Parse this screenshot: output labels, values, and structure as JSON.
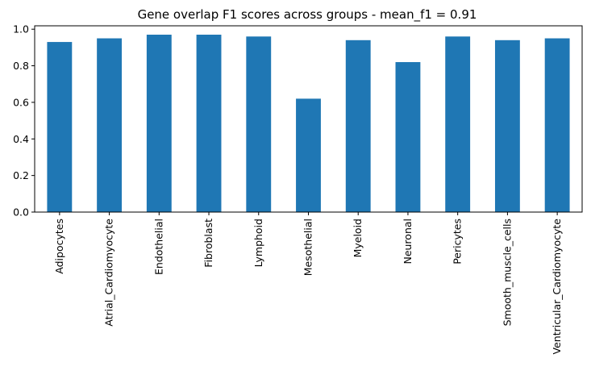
{
  "chart_data": {
    "type": "bar",
    "title": "Gene overlap F1 scores across groups - mean_f1 = 0.91",
    "xlabel": "",
    "ylabel": "",
    "categories": [
      "Adipocytes",
      "Atrial_Cardiomyocyte",
      "Endothelial",
      "Fibroblast",
      "Lymphoid",
      "Mesothelial",
      "Myeloid",
      "Neuronal",
      "Pericytes",
      "Smooth_muscle_cells",
      "Ventricular_Cardiomyocyte"
    ],
    "values": [
      0.93,
      0.95,
      0.97,
      0.97,
      0.96,
      0.62,
      0.94,
      0.82,
      0.96,
      0.94,
      0.95
    ],
    "ylim": [
      0,
      1.0185
    ],
    "yticks": [
      0.0,
      0.2,
      0.4,
      0.6,
      0.8,
      1.0
    ],
    "ytick_labels": [
      "0.0",
      "0.2",
      "0.4",
      "0.6",
      "0.8",
      "1.0"
    ],
    "bar_color": "#1f77b4",
    "grid": false,
    "legend": "none"
  }
}
